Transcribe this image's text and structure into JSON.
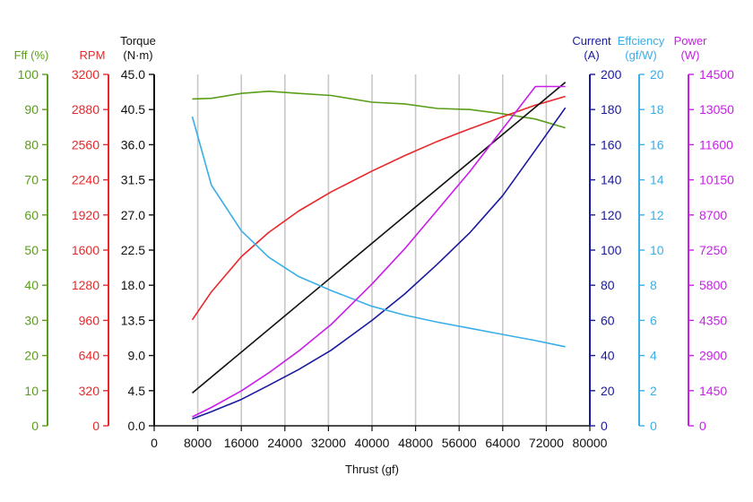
{
  "chart_data": {
    "type": "line",
    "x_axis": {
      "label": "Thrust (gf)",
      "range": [
        0,
        80000
      ],
      "ticks": [
        0,
        8000,
        16000,
        24000,
        32000,
        40000,
        48000,
        56000,
        64000,
        72000,
        80000
      ],
      "tick_labels": [
        "0",
        "8000",
        "16000",
        "24000",
        "32000",
        "40000",
        "48000",
        "56000",
        "64000",
        "72000",
        "80000"
      ]
    },
    "y_axes": [
      {
        "id": "fff",
        "title": "Fff (%)",
        "color": "#5a9e1a",
        "side": "left",
        "range": [
          0,
          100
        ],
        "tick_labels": [
          "0",
          "10",
          "20",
          "30",
          "40",
          "50",
          "60",
          "70",
          "80",
          "90",
          "100"
        ]
      },
      {
        "id": "rpm",
        "title": "RPM",
        "color": "#e8282a",
        "side": "left",
        "range": [
          0,
          3200
        ],
        "tick_labels": [
          "0",
          "320",
          "640",
          "960",
          "1280",
          "1600",
          "1920",
          "2240",
          "2560",
          "2880",
          "3200"
        ]
      },
      {
        "id": "torque",
        "title": "Torque",
        "title2": "(N·m)",
        "color": "#111111",
        "side": "left",
        "range": [
          0,
          45
        ],
        "tick_labels": [
          "0.0",
          "4.5",
          "9.0",
          "13.5",
          "18.0",
          "22.5",
          "27.0",
          "31.5",
          "36.0",
          "40.5",
          "45.0"
        ]
      },
      {
        "id": "current",
        "title": "Current",
        "title2": "(A)",
        "color": "#1a1a9e",
        "side": "right",
        "range": [
          0,
          200
        ],
        "tick_labels": [
          "0",
          "20",
          "40",
          "60",
          "80",
          "100",
          "120",
          "140",
          "160",
          "180",
          "200"
        ]
      },
      {
        "id": "efficiency",
        "title": "Effciency",
        "title2": "(gf/W)",
        "color": "#3aaee8",
        "side": "right",
        "range": [
          0,
          20
        ],
        "tick_labels": [
          "0",
          "2",
          "4",
          "6",
          "8",
          "10",
          "12",
          "14",
          "16",
          "18",
          "20"
        ]
      },
      {
        "id": "power",
        "title": "Power",
        "title2": "(W)",
        "color": "#c81ee8",
        "side": "right",
        "range": [
          0,
          14500
        ],
        "tick_labels": [
          "0",
          "1450",
          "2900",
          "4350",
          "5800",
          "7250",
          "8700",
          "10150",
          "11600",
          "13050",
          "14500"
        ]
      }
    ],
    "grid": "vertical",
    "series": [
      {
        "axis": "fff",
        "color": "#5a9e1a",
        "x": [
          7000,
          10500,
          16000,
          21000,
          26500,
          32500,
          40000,
          46000,
          52000,
          58000,
          64000,
          70000,
          75500
        ],
        "y": [
          93,
          93.2,
          94.6,
          95.2,
          94.6,
          94,
          92.1,
          91.6,
          90.3,
          90,
          88.8,
          87.3,
          84.8
        ]
      },
      {
        "axis": "rpm",
        "color": "#e8282a",
        "x": [
          7000,
          10500,
          16000,
          21000,
          26500,
          32500,
          40000,
          46000,
          52000,
          58000,
          64000,
          70000,
          75500
        ],
        "y": [
          965,
          1220,
          1540,
          1760,
          1955,
          2130,
          2320,
          2460,
          2590,
          2705,
          2815,
          2920,
          3000
        ]
      },
      {
        "axis": "torque",
        "color": "#111111",
        "x": [
          7000,
          75500
        ],
        "y": [
          4.2,
          44.0
        ]
      },
      {
        "axis": "current",
        "color": "#1a1a9e",
        "x": [
          7000,
          10500,
          16000,
          21000,
          26500,
          32500,
          40000,
          46000,
          52000,
          58000,
          64000,
          70000,
          75500
        ],
        "y": [
          4,
          8,
          15,
          23,
          32,
          43,
          60,
          75,
          92,
          110,
          131,
          157,
          181
        ]
      },
      {
        "axis": "efficiency",
        "color": "#3aaee8",
        "x": [
          7000,
          10500,
          16000,
          21000,
          26500,
          32500,
          40000,
          46000,
          52000,
          58000,
          64000,
          70000,
          75500
        ],
        "y": [
          17.6,
          13.7,
          11.1,
          9.6,
          8.5,
          7.7,
          6.8,
          6.3,
          5.9,
          5.55,
          5.2,
          4.85,
          4.5
        ]
      },
      {
        "axis": "power",
        "color": "#c81ee8",
        "x": [
          7000,
          10500,
          16000,
          21000,
          26500,
          32500,
          40000,
          46000,
          52000,
          58000,
          64000,
          70000,
          75500
        ],
        "y": [
          370,
          760,
          1440,
          2180,
          3080,
          4180,
          5850,
          7300,
          8900,
          10500,
          12250,
          14000,
          14000
        ]
      }
    ]
  }
}
